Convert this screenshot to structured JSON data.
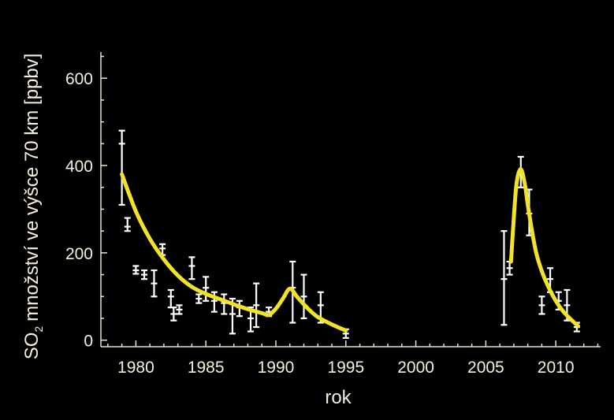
{
  "chart_data": {
    "type": "line",
    "xlabel": "rok",
    "ylabel": "množství ve výšce 70 km  [ppbv]",
    "ylabel_prefix": "SO",
    "ylabel_subscript": "2",
    "xlim": [
      1977.5,
      2013.2
    ],
    "ylim": [
      -15,
      660
    ],
    "x_ticks": [
      1980,
      1985,
      1990,
      1995,
      2000,
      2005,
      2010
    ],
    "y_ticks": [
      0,
      200,
      400,
      600
    ],
    "colors": {
      "background": "#000000",
      "fit_line": "#f2e229",
      "measurements": "#ffffff",
      "axis": "#e8e4d2",
      "text": "#f5f0dc"
    },
    "measurements": [
      {
        "x": 1979.0,
        "y": 450,
        "low": 310,
        "high": 480
      },
      {
        "x": 1979.4,
        "y": 260,
        "low": 250,
        "high": 280
      },
      {
        "x": 1980.0,
        "y": 160,
        "low": 152,
        "high": 170
      },
      {
        "x": 1980.6,
        "y": 150,
        "low": 140,
        "high": 160
      },
      {
        "x": 1981.3,
        "y": 130,
        "low": 100,
        "high": 160
      },
      {
        "x": 1981.9,
        "y": 210,
        "low": 195,
        "high": 220
      },
      {
        "x": 1982.5,
        "y": 100,
        "low": 75,
        "high": 115
      },
      {
        "x": 1982.7,
        "y": 60,
        "low": 45,
        "high": 75
      },
      {
        "x": 1983.1,
        "y": 70,
        "low": 60,
        "high": 80
      },
      {
        "x": 1984.0,
        "y": 170,
        "low": 140,
        "high": 190
      },
      {
        "x": 1984.5,
        "y": 95,
        "low": 85,
        "high": 105
      },
      {
        "x": 1985.0,
        "y": 120,
        "low": 90,
        "high": 145
      },
      {
        "x": 1985.6,
        "y": 90,
        "low": 65,
        "high": 110
      },
      {
        "x": 1986.3,
        "y": 85,
        "low": 60,
        "high": 105
      },
      {
        "x": 1986.9,
        "y": 60,
        "low": 15,
        "high": 95
      },
      {
        "x": 1987.4,
        "y": 75,
        "low": 55,
        "high": 90
      },
      {
        "x": 1988.2,
        "y": 50,
        "low": 20,
        "high": 75
      },
      {
        "x": 1988.6,
        "y": 80,
        "low": 30,
        "high": 130
      },
      {
        "x": 1989.5,
        "y": 65,
        "low": 55,
        "high": 75
      },
      {
        "x": 1991.2,
        "y": 120,
        "low": 40,
        "high": 180
      },
      {
        "x": 1992.0,
        "y": 100,
        "low": 50,
        "high": 150
      },
      {
        "x": 1993.2,
        "y": 80,
        "low": 40,
        "high": 110
      },
      {
        "x": 1995.0,
        "y": 15,
        "low": 5,
        "high": 25
      },
      {
        "x": 2006.3,
        "y": 140,
        "low": 35,
        "high": 250
      },
      {
        "x": 2006.7,
        "y": 165,
        "low": 150,
        "high": 180
      },
      {
        "x": 2007.5,
        "y": 380,
        "low": 350,
        "high": 420
      },
      {
        "x": 2008.1,
        "y": 290,
        "low": 240,
        "high": 345
      },
      {
        "x": 2009.0,
        "y": 80,
        "low": 60,
        "high": 100
      },
      {
        "x": 2009.6,
        "y": 140,
        "low": 110,
        "high": 165
      },
      {
        "x": 2010.2,
        "y": 90,
        "low": 70,
        "high": 110
      },
      {
        "x": 2010.8,
        "y": 80,
        "low": 45,
        "high": 115
      },
      {
        "x": 2011.5,
        "y": 30,
        "low": 20,
        "high": 40
      }
    ],
    "fit_segments": [
      {
        "name": "",
        "x": [
          1979.0,
          1980.0,
          1981.0,
          1982.0,
          1983.0,
          1984.0,
          1985.0,
          1986.0,
          1987.0,
          1988.0,
          1989.0,
          1989.5,
          1990.0,
          1990.5,
          1991.0,
          1991.5,
          1992.0,
          1992.5,
          1993.0,
          1994.0,
          1995.0
        ],
        "y": [
          380,
          295,
          232,
          185,
          148,
          122,
          106,
          94,
          82,
          71,
          62,
          58,
          72,
          95,
          118,
          100,
          82,
          66,
          53,
          36,
          22
        ]
      },
      {
        "name": "",
        "x": [
          2006.8,
          2007.0,
          2007.2,
          2007.5,
          2007.8,
          2008.0,
          2008.3,
          2008.6,
          2009.0,
          2009.5,
          2010.0,
          2010.5,
          2011.0,
          2011.6
        ],
        "y": [
          180,
          280,
          360,
          392,
          355,
          310,
          250,
          200,
          158,
          120,
          90,
          67,
          50,
          32
        ]
      }
    ]
  }
}
